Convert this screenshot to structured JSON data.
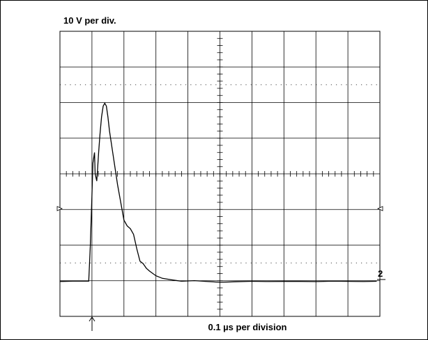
{
  "chart_data": {
    "type": "line",
    "title": "",
    "ylabel": "10 V per div.",
    "xlabel": "0.1 µs per division",
    "channel_marker": "2",
    "grid": true,
    "divisions": {
      "x": 10,
      "y": 8
    },
    "x_unit": "µs",
    "y_unit": "V",
    "xlim": [
      0,
      1.0
    ],
    "ylim": [
      -40,
      40
    ],
    "series": [
      {
        "x": [
          0,
          0.05,
          0.09,
          0.095,
          0.1,
          0.103,
          0.108,
          0.11,
          0.115,
          0.118,
          0.121,
          0.125,
          0.13,
          0.135,
          0.14,
          0.145,
          0.15,
          0.155,
          0.16,
          0.165,
          0.17,
          0.18,
          0.19,
          0.2,
          0.21,
          0.22,
          0.23,
          0.24,
          0.25,
          0.26,
          0.27,
          0.28,
          0.3,
          0.32,
          0.35,
          0.38,
          0.42,
          0.5,
          0.55,
          0.6,
          0.65,
          0.7,
          0.75,
          0.8,
          0.85,
          0.9,
          0.95,
          0.99
        ],
        "y": [
          -30.2,
          -30.2,
          -30.1,
          -20,
          -6,
          3,
          6,
          0,
          -2,
          2,
          6,
          11,
          16,
          19,
          19.8,
          19,
          16,
          12,
          9,
          6,
          3,
          -3,
          -8,
          -13,
          -14.6,
          -15.4,
          -17,
          -21,
          -24.5,
          -25.2,
          -26.5,
          -27.3,
          -28.6,
          -29.4,
          -29.8,
          -30,
          -30.1,
          -30.4,
          -30.2,
          -30.3,
          -30.1,
          -30.2,
          -30.3,
          -30.1,
          -30.2,
          -30.2,
          -30.1,
          -30.3
        ]
      }
    ]
  }
}
